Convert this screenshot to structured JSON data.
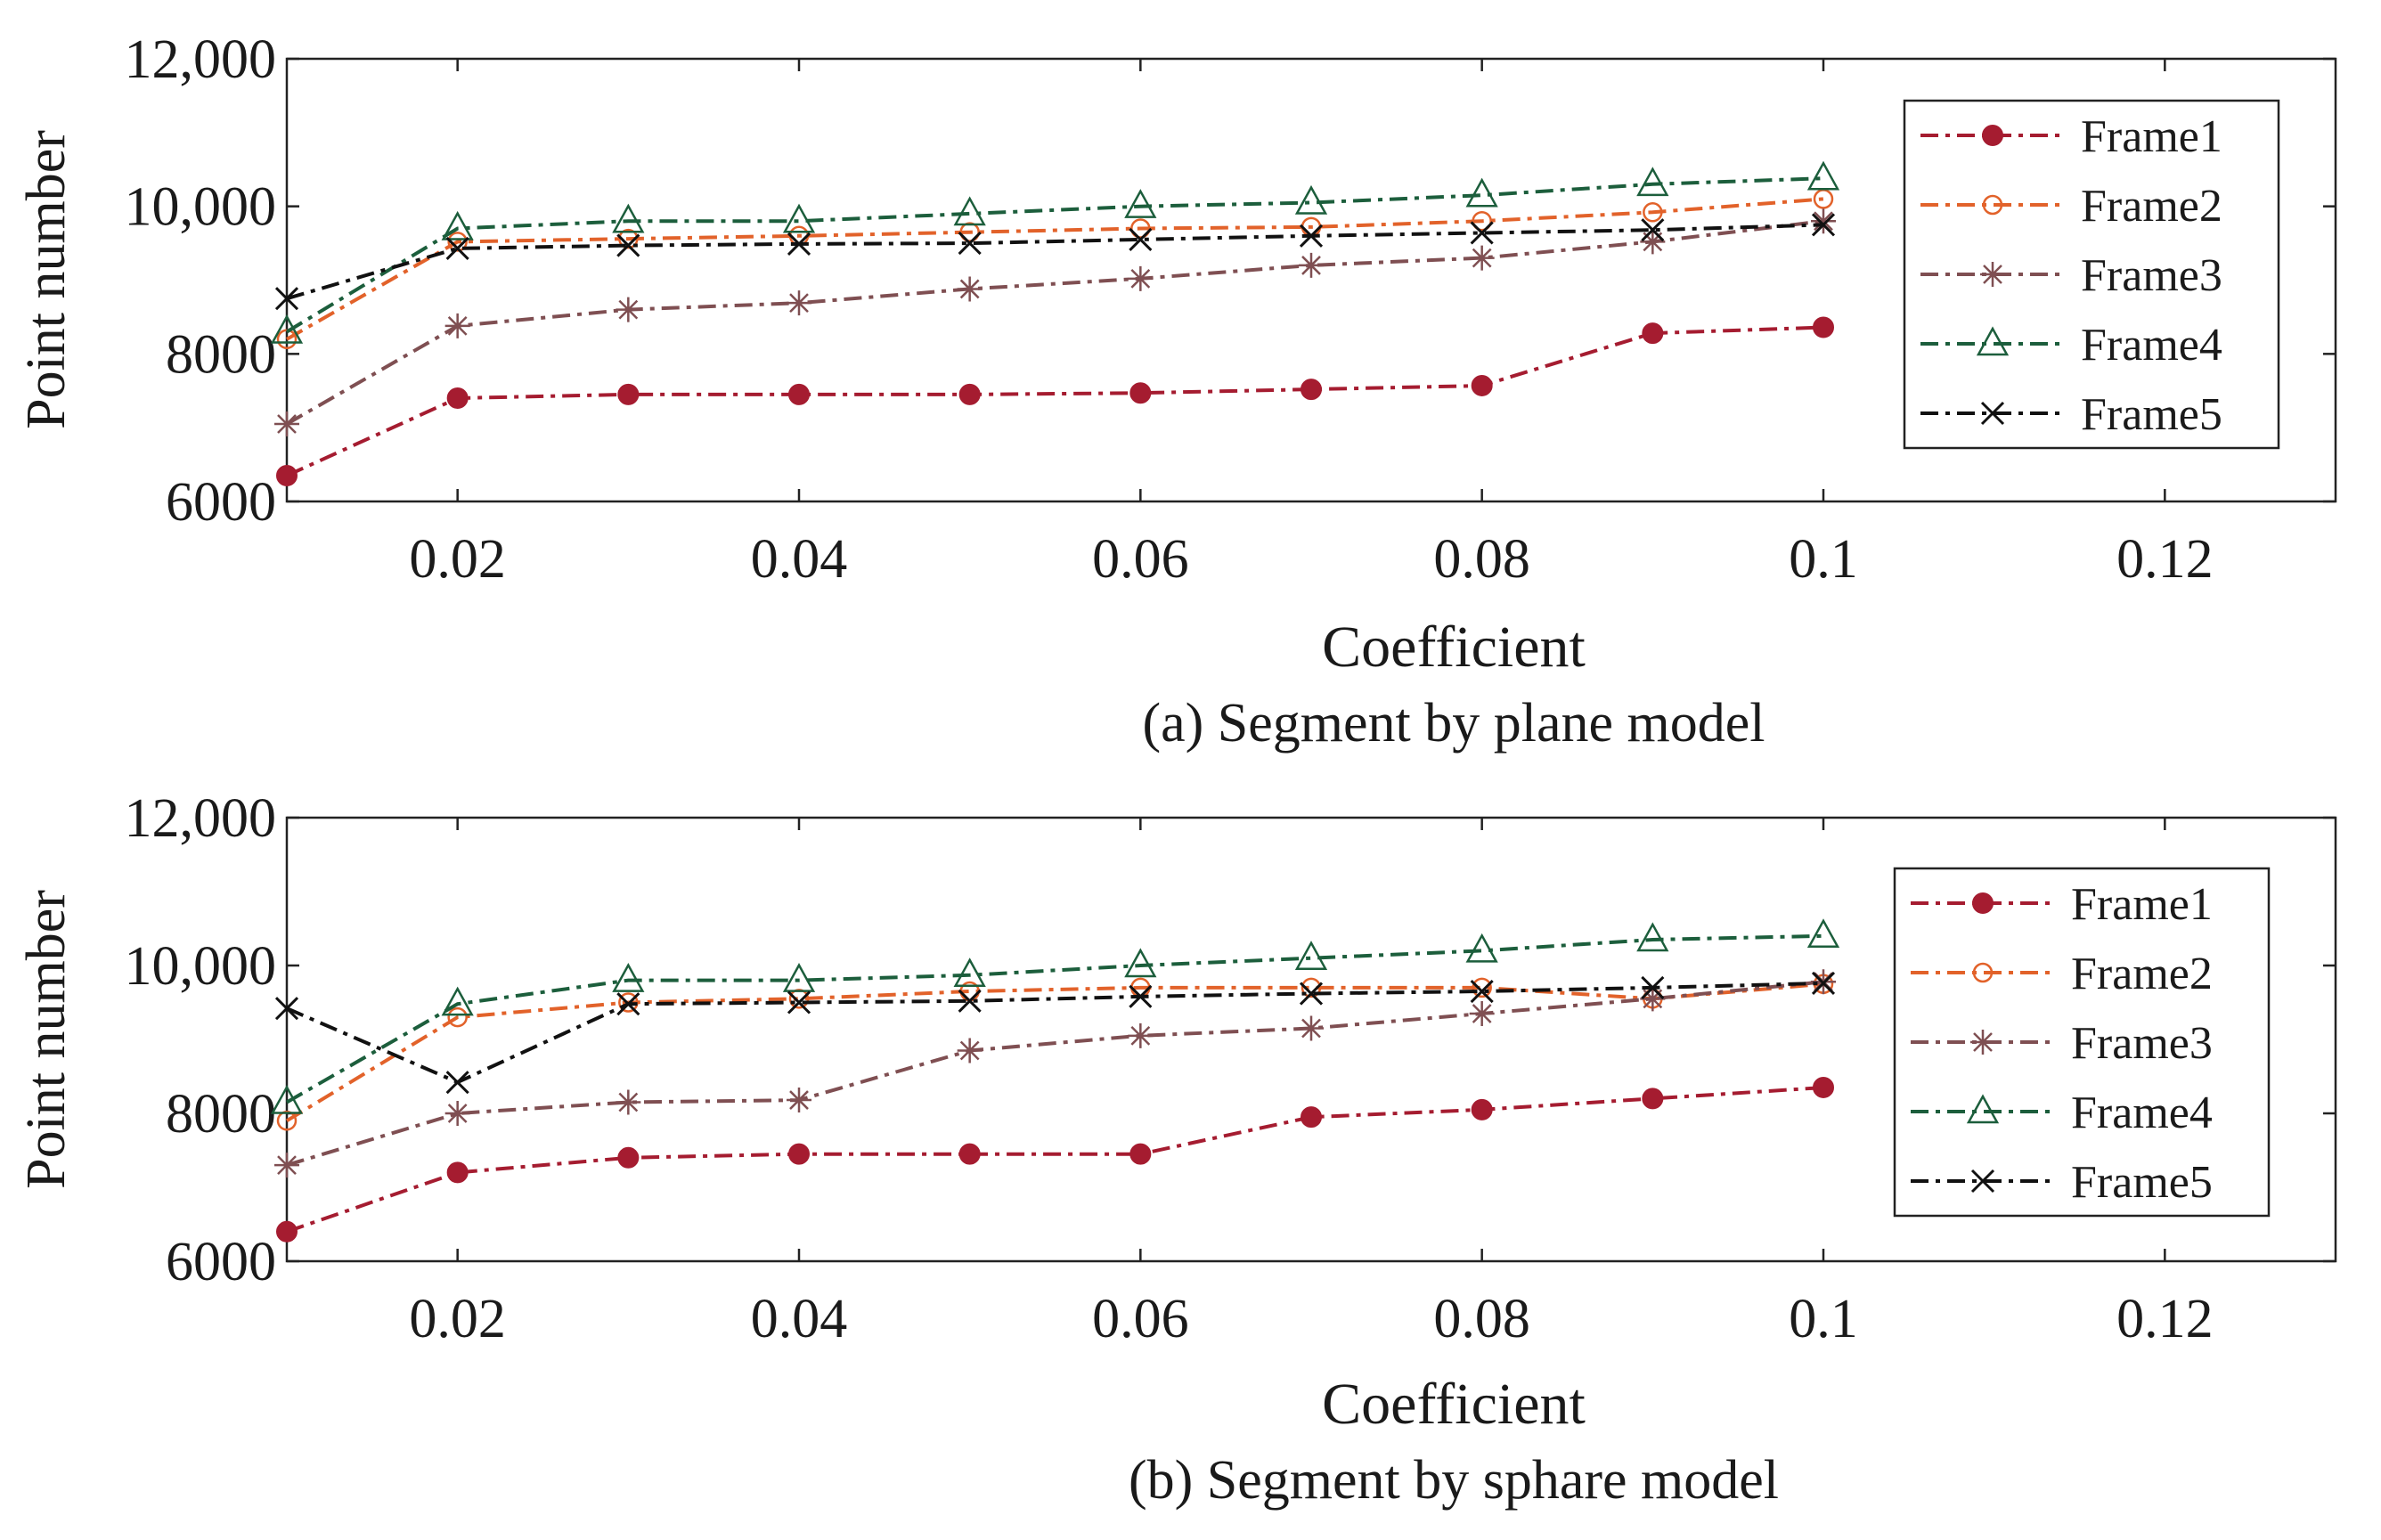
{
  "chart_data": [
    {
      "type": "line",
      "title": "(a) Segment by plane model",
      "xlabel": "Coefficient",
      "ylabel": "Point number",
      "xlim": [
        0.01,
        0.13
      ],
      "ylim": [
        6000,
        12000
      ],
      "xticks": [
        0.02,
        0.04,
        0.06,
        0.08,
        0.1,
        0.12
      ],
      "xtick_labels": [
        "0.02",
        "0.04",
        "0.06",
        "0.08",
        "0.1",
        "0.12"
      ],
      "yticks": [
        6000,
        8000,
        10000,
        12000
      ],
      "ytick_labels": [
        "6000",
        "8000",
        "10,000",
        "12,000"
      ],
      "legend_position": "top-right",
      "x": [
        0.01,
        0.02,
        0.03,
        0.04,
        0.05,
        0.06,
        0.07,
        0.08,
        0.09,
        0.1
      ],
      "series": [
        {
          "name": "Frame1",
          "marker": "filled-circle",
          "color": "#a51c30",
          "values": [
            6350,
            7400,
            7450,
            7450,
            7450,
            7470,
            7520,
            7570,
            8280,
            8360
          ]
        },
        {
          "name": "Frame2",
          "marker": "open-circle",
          "color": "#e2622a",
          "values": [
            8200,
            9520,
            9560,
            9600,
            9650,
            9700,
            9720,
            9800,
            9920,
            10100
          ]
        },
        {
          "name": "Frame3",
          "marker": "asterisk",
          "color": "#7f4f52",
          "values": [
            7050,
            8380,
            8600,
            8690,
            8880,
            9020,
            9200,
            9300,
            9520,
            9800
          ]
        },
        {
          "name": "Frame4",
          "marker": "open-triangle",
          "color": "#1c5e3c",
          "values": [
            8300,
            9700,
            9800,
            9800,
            9900,
            10000,
            10050,
            10150,
            10300,
            10380
          ]
        },
        {
          "name": "Frame5",
          "marker": "cross",
          "color": "#111111",
          "values": [
            8750,
            9430,
            9470,
            9490,
            9500,
            9550,
            9600,
            9640,
            9680,
            9750
          ]
        }
      ]
    },
    {
      "type": "line",
      "title": "(b) Segment by sphare model",
      "xlabel": "Coefficient",
      "ylabel": "Point number",
      "xlim": [
        0.01,
        0.13
      ],
      "ylim": [
        6000,
        12000
      ],
      "xticks": [
        0.02,
        0.04,
        0.06,
        0.08,
        0.1,
        0.12
      ],
      "xtick_labels": [
        "0.02",
        "0.04",
        "0.06",
        "0.08",
        "0.1",
        "0.12"
      ],
      "yticks": [
        6000,
        8000,
        10000,
        12000
      ],
      "ytick_labels": [
        "6000",
        "8000",
        "10,000",
        "12,000"
      ],
      "legend_position": "top-right",
      "x": [
        0.01,
        0.02,
        0.03,
        0.04,
        0.05,
        0.06,
        0.07,
        0.08,
        0.09,
        0.1
      ],
      "series": [
        {
          "name": "Frame1",
          "marker": "filled-circle",
          "color": "#a51c30",
          "values": [
            6400,
            7200,
            7400,
            7450,
            7450,
            7450,
            7950,
            8050,
            8200,
            8350
          ]
        },
        {
          "name": "Frame2",
          "marker": "open-circle",
          "color": "#e2622a",
          "values": [
            7900,
            9300,
            9500,
            9550,
            9650,
            9700,
            9700,
            9700,
            9550,
            9750
          ]
        },
        {
          "name": "Frame3",
          "marker": "asterisk",
          "color": "#7f4f52",
          "values": [
            7300,
            8000,
            8150,
            8180,
            8850,
            9050,
            9150,
            9350,
            9550,
            9780
          ]
        },
        {
          "name": "Frame4",
          "marker": "open-triangle",
          "color": "#1c5e3c",
          "values": [
            8150,
            9480,
            9800,
            9800,
            9870,
            10000,
            10100,
            10200,
            10350,
            10400
          ]
        },
        {
          "name": "Frame5",
          "marker": "cross",
          "color": "#111111",
          "values": [
            9420,
            8420,
            9480,
            9500,
            9520,
            9580,
            9620,
            9650,
            9700,
            9760
          ]
        }
      ]
    }
  ]
}
